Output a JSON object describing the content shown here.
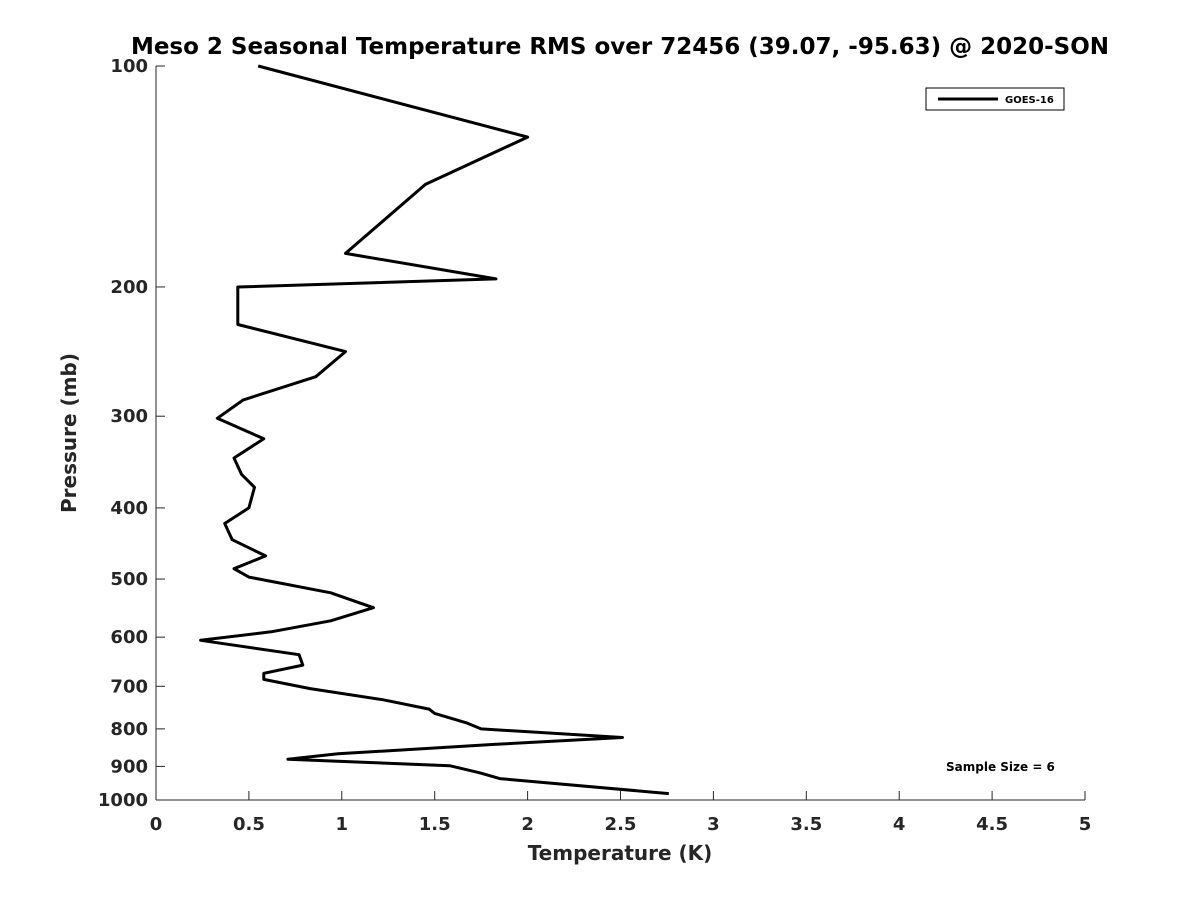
{
  "chart_data": {
    "type": "line",
    "title": "Meso 2 Seasonal Temperature RMS over 72456 (39.07, -95.63) @ 2020-SON",
    "xlabel": "Temperature (K)",
    "ylabel": "Pressure (mb)",
    "xlim": [
      0,
      5
    ],
    "ylim": [
      100,
      1000
    ],
    "y_scale": "log",
    "y_reversed": true,
    "xticks": [
      0,
      0.5,
      1,
      1.5,
      2,
      2.5,
      3,
      3.5,
      4,
      4.5,
      5
    ],
    "xtick_labels": [
      "0",
      "0.5",
      "1",
      "1.5",
      "2",
      "2.5",
      "3",
      "3.5",
      "4",
      "4.5",
      "5"
    ],
    "yticks": [
      100,
      200,
      300,
      400,
      500,
      600,
      700,
      800,
      900,
      1000
    ],
    "ytick_labels": [
      "100",
      "200",
      "300",
      "400",
      "500",
      "600",
      "700",
      "800",
      "900",
      "1000"
    ],
    "grid": false,
    "legend_position": "top-right",
    "annotation": "Sample Size = 6",
    "series": [
      {
        "name": "GOES-16",
        "color": "#000000",
        "points": [
          [
            0.55,
            100
          ],
          [
            2.0,
            125
          ],
          [
            1.45,
            145
          ],
          [
            1.02,
            180
          ],
          [
            1.83,
            195
          ],
          [
            0.44,
            200
          ],
          [
            0.44,
            225
          ],
          [
            1.02,
            245
          ],
          [
            0.86,
            265
          ],
          [
            0.47,
            285
          ],
          [
            0.33,
            302
          ],
          [
            0.58,
            322
          ],
          [
            0.42,
            342
          ],
          [
            0.46,
            360
          ],
          [
            0.53,
            375
          ],
          [
            0.5,
            400
          ],
          [
            0.37,
            420
          ],
          [
            0.41,
            442
          ],
          [
            0.59,
            465
          ],
          [
            0.42,
            484
          ],
          [
            0.5,
            497
          ],
          [
            0.94,
            522
          ],
          [
            1.17,
            547
          ],
          [
            0.94,
            570
          ],
          [
            0.62,
            590
          ],
          [
            0.24,
            606
          ],
          [
            0.77,
            634
          ],
          [
            0.79,
            655
          ],
          [
            0.58,
            672
          ],
          [
            0.58,
            685
          ],
          [
            0.83,
            705
          ],
          [
            1.22,
            730
          ],
          [
            1.47,
            752
          ],
          [
            1.5,
            762
          ],
          [
            1.67,
            785
          ],
          [
            1.75,
            800
          ],
          [
            2.51,
            822
          ],
          [
            1.82,
            840
          ],
          [
            0.98,
            865
          ],
          [
            0.71,
            880
          ],
          [
            1.58,
            898
          ],
          [
            1.74,
            918
          ],
          [
            1.85,
            935
          ],
          [
            2.76,
            980
          ]
        ]
      }
    ]
  }
}
